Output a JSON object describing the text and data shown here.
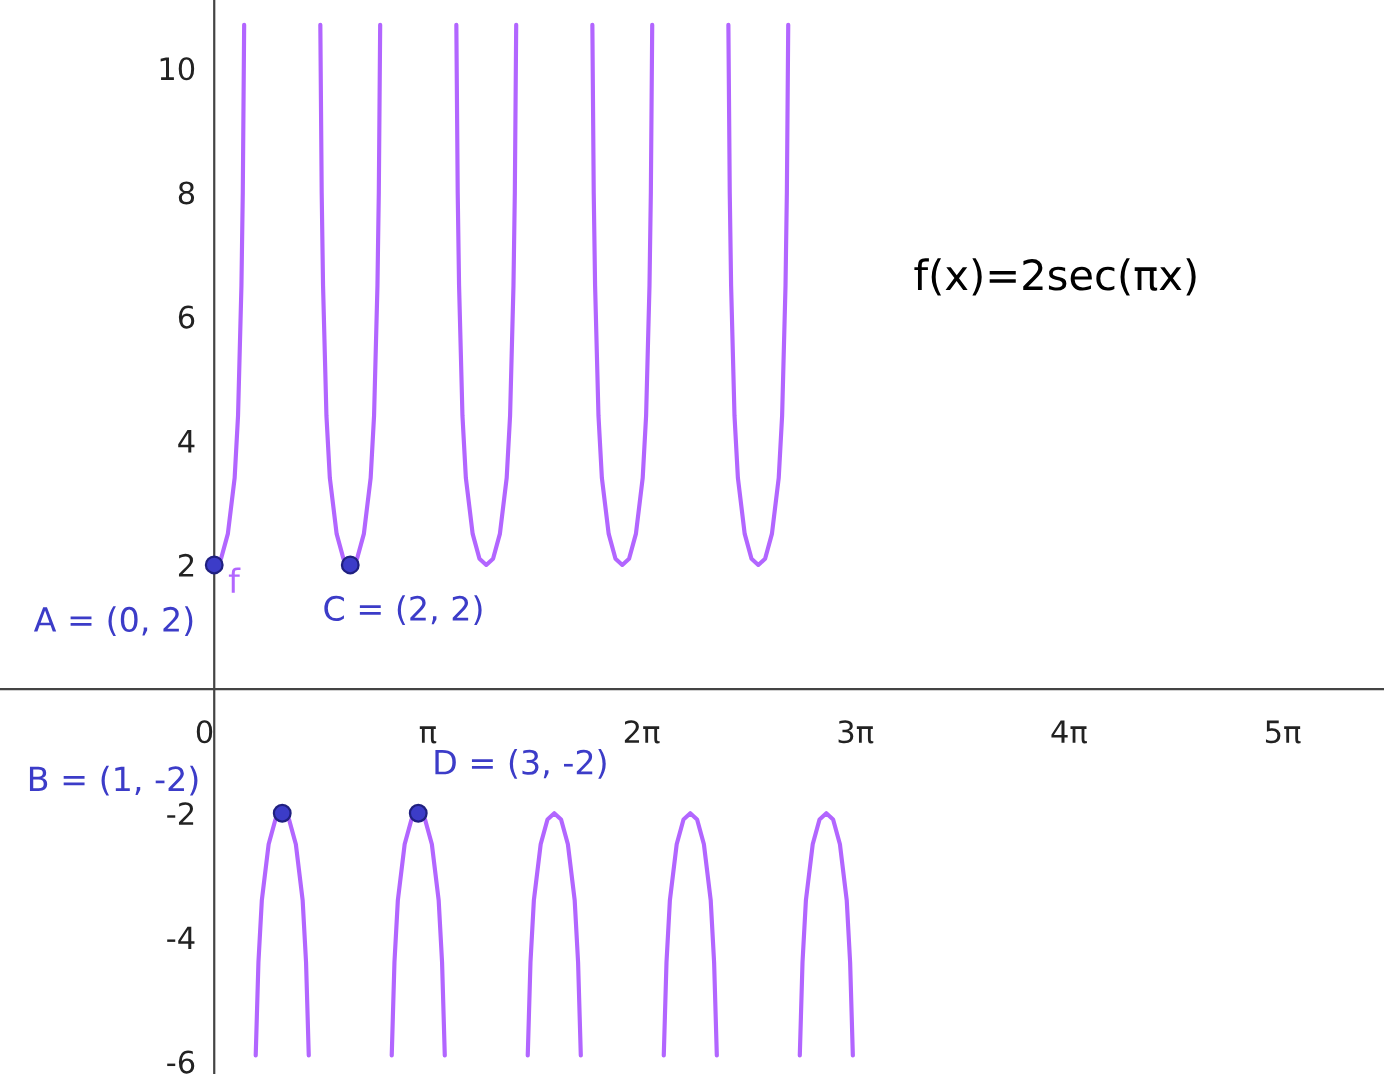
{
  "chart_data": {
    "type": "line",
    "xlim": [
      -3.15,
      17.2
    ],
    "ylim": [
      -6.2,
      11.1
    ],
    "xticks": [
      0,
      {
        "value": 3.1416,
        "label": "π"
      },
      {
        "value": 6.2832,
        "label": "2π"
      },
      {
        "value": 9.4248,
        "label": "3π"
      },
      {
        "value": 12.5664,
        "label": "4π"
      },
      {
        "value": 15.708,
        "label": "5π"
      }
    ],
    "yticks": [
      -6,
      -4,
      -2,
      2,
      4,
      6,
      8,
      10
    ],
    "grid": false,
    "legend": false,
    "series": [
      {
        "color": "#b266ff",
        "marker": "none",
        "x": [
          0,
          0.1,
          0.2,
          0.3,
          0.35,
          0.4,
          0.42,
          0.44,
          0.5,
          0.61,
          0.65,
          0.7,
          0.8,
          0.9,
          1,
          1.1,
          1.2,
          1.3,
          1.35,
          1.39,
          1.5,
          1.56,
          1.58,
          1.6,
          1.65,
          1.7,
          1.8,
          1.9,
          2,
          2.1,
          2.2,
          2.3,
          2.35,
          2.4,
          2.42,
          2.44,
          2.5,
          2.61,
          2.65,
          2.7,
          2.8,
          2.9,
          3,
          3.1,
          3.2,
          3.3,
          3.35,
          3.39,
          3.5,
          3.56,
          3.58,
          3.6,
          3.65,
          3.7,
          3.8,
          3.9,
          4,
          4.1,
          4.2,
          4.3,
          4.35,
          4.4,
          4.42,
          4.44,
          4.5,
          4.61,
          4.65,
          4.7,
          4.8,
          4.9,
          5,
          5.1,
          5.2,
          5.3,
          5.35,
          5.39,
          5.5,
          5.56,
          5.58,
          5.6,
          5.65,
          5.7,
          5.8,
          5.9,
          6,
          6.1,
          6.2,
          6.3,
          6.35,
          6.4,
          6.42,
          6.44,
          6.5,
          6.61,
          6.65,
          6.7,
          6.8,
          6.9,
          7,
          7.1,
          7.2,
          7.3,
          7.35,
          7.39,
          7.5,
          7.56,
          7.58,
          7.6,
          7.65,
          7.7,
          7.8,
          7.9,
          8,
          8.1,
          8.2,
          8.3,
          8.35,
          8.4,
          8.42,
          8.44,
          8.5,
          8.61,
          8.65,
          8.7,
          8.8,
          8.9,
          9,
          9.1,
          9.2,
          9.3,
          9.35,
          9.39
        ],
        "values": [
          2,
          2.1,
          2.5,
          3.4,
          4.4,
          6.5,
          8,
          10.7,
          null,
          -5.9,
          -4.4,
          -3.4,
          -2.5,
          -2.1,
          -2,
          -2.1,
          -2.5,
          -3.4,
          -4.4,
          -5.9,
          null,
          10.7,
          8,
          6.5,
          4.4,
          3.4,
          2.5,
          2.1,
          2,
          2.1,
          2.5,
          3.4,
          4.4,
          6.5,
          8,
          10.7,
          null,
          -5.9,
          -4.4,
          -3.4,
          -2.5,
          -2.1,
          -2,
          -2.1,
          -2.5,
          -3.4,
          -4.4,
          -5.9,
          null,
          10.7,
          8,
          6.5,
          4.4,
          3.4,
          2.5,
          2.1,
          2,
          2.1,
          2.5,
          3.4,
          4.4,
          6.5,
          8,
          10.7,
          null,
          -5.9,
          -4.4,
          -3.4,
          -2.5,
          -2.1,
          -2,
          -2.1,
          -2.5,
          -3.4,
          -4.4,
          -5.9,
          null,
          10.7,
          8,
          6.5,
          4.4,
          3.4,
          2.5,
          2.1,
          2,
          2.1,
          2.5,
          3.4,
          4.4,
          6.5,
          8,
          10.7,
          null,
          -5.9,
          -4.4,
          -3.4,
          -2.5,
          -2.1,
          -2,
          -2.1,
          -2.5,
          -3.4,
          -4.4,
          -5.9,
          null,
          10.7,
          8,
          6.5,
          4.4,
          3.4,
          2.5,
          2.1,
          2,
          2.1,
          2.5,
          3.4,
          4.4,
          6.5,
          8,
          10.7,
          null,
          -5.9,
          -4.4,
          -3.4,
          -2.5,
          -2.1,
          -2,
          -2.1,
          -2.5,
          -3.4,
          -4.4,
          -5.9
        ]
      },
      {
        "type": "scatter",
        "color": "#3c3cc8",
        "marker": "circle",
        "x": [
          0,
          1,
          2,
          3
        ],
        "values": [
          2,
          -2,
          2,
          -2
        ]
      }
    ],
    "annotations": [
      {
        "text": "f",
        "x": 0,
        "y": 2
      },
      {
        "text": "A = (0, 2)",
        "x": 0,
        "y": 2
      },
      {
        "text": "B = (1, -2)",
        "x": 1,
        "y": -2
      },
      {
        "text": "C = (2, 2)",
        "x": 2,
        "y": 2
      },
      {
        "text": "D = (3, -2)",
        "x": 3,
        "y": -2
      },
      "f(x)=2sec(πx)"
    ]
  }
}
